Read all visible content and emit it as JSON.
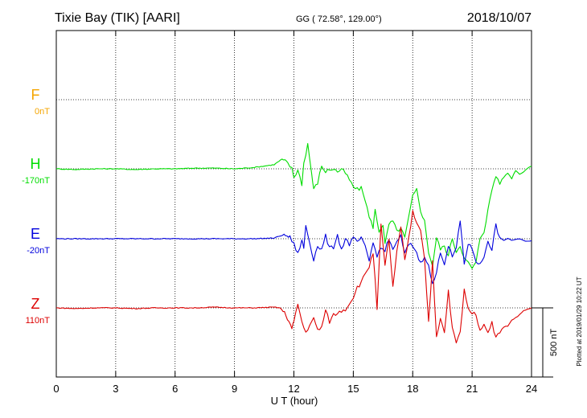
{
  "header": {
    "station": "Tixie Bay (TIK)  [AARI]",
    "coords": "GG ( 72.58°, 129.00°)",
    "date": "2018/10/07"
  },
  "side_note": "Plotted at 2019/01/29 10:22 UT",
  "scale_label": "500 nT",
  "chart_data": {
    "type": "line",
    "xlabel": "U T (hour)",
    "ylabel": "",
    "xlim": [
      0,
      24
    ],
    "x_ticks": [
      0,
      3,
      6,
      9,
      12,
      15,
      18,
      21,
      24
    ],
    "scale_nT": 500,
    "grid": true,
    "series": [
      {
        "name": "F",
        "baseline_label": "0nT",
        "color": "#f5a500",
        "values": []
      },
      {
        "name": "H",
        "baseline_label": "-170nT",
        "color": "#00dd00",
        "x": [
          0,
          1,
          2,
          3,
          4,
          5,
          6,
          7,
          8,
          9,
          10,
          11,
          11.4,
          11.7,
          11.9,
          12.0,
          12.2,
          12.4,
          12.5,
          12.7,
          12.9,
          13.0,
          13.2,
          13.4,
          13.6,
          13.8,
          14.0,
          14.2,
          14.4,
          14.6,
          14.8,
          15.0,
          15.2,
          15.4,
          15.6,
          15.8,
          16.0,
          16.1,
          16.3,
          16.5,
          16.6,
          16.8,
          17.0,
          17.2,
          17.4,
          17.6,
          17.8,
          18.0,
          18.2,
          18.4,
          18.6,
          18.8,
          19.0,
          19.2,
          19.4,
          19.6,
          19.8,
          20.0,
          20.2,
          20.4,
          20.6,
          20.8,
          21.0,
          21.2,
          21.4,
          21.6,
          21.8,
          22.0,
          22.2,
          22.4,
          22.6,
          22.8,
          23.0,
          23.2,
          23.4,
          23.6,
          23.8,
          24.0
        ],
        "values": [
          0,
          -5,
          0,
          0,
          -5,
          0,
          0,
          5,
          5,
          0,
          10,
          30,
          70,
          40,
          0,
          -60,
          -10,
          -110,
          40,
          180,
          -40,
          -150,
          -100,
          20,
          -20,
          -5,
          0,
          -20,
          -5,
          -30,
          -80,
          -130,
          -150,
          -140,
          -220,
          -350,
          -420,
          -300,
          -450,
          -400,
          -550,
          -400,
          -380,
          -450,
          -430,
          -500,
          -350,
          -200,
          -150,
          -300,
          -380,
          -600,
          -700,
          -500,
          -580,
          -560,
          -630,
          -500,
          -600,
          -550,
          -650,
          -680,
          -720,
          -680,
          -500,
          -450,
          -300,
          -150,
          -50,
          -100,
          -60,
          -30,
          -70,
          -10,
          -40,
          -20,
          5,
          20
        ]
      },
      {
        "name": "E",
        "baseline_label": "-20nT",
        "color": "#0000dd",
        "x": [
          0,
          1,
          2,
          3,
          4,
          5,
          6,
          7,
          8,
          9,
          10,
          11,
          11.5,
          11.8,
          12.0,
          12.2,
          12.4,
          12.5,
          12.6,
          12.8,
          13.0,
          13.2,
          13.4,
          13.6,
          13.8,
          14.0,
          14.2,
          14.4,
          14.6,
          14.8,
          15.0,
          15.2,
          15.4,
          15.6,
          15.8,
          16.0,
          16.2,
          16.4,
          16.6,
          16.8,
          17.0,
          17.2,
          17.4,
          17.6,
          17.8,
          18.0,
          18.2,
          18.4,
          18.6,
          18.8,
          19.0,
          19.2,
          19.4,
          19.6,
          19.8,
          20.0,
          20.2,
          20.4,
          20.6,
          20.8,
          21.0,
          21.2,
          21.4,
          21.6,
          21.8,
          22.0,
          22.2,
          22.4,
          22.6,
          22.8,
          23.0,
          23.2,
          23.4,
          23.6,
          23.8,
          24.0
        ],
        "values": [
          0,
          0,
          0,
          0,
          0,
          0,
          0,
          0,
          0,
          0,
          0,
          5,
          30,
          10,
          -40,
          -110,
          -10,
          -70,
          100,
          -30,
          -150,
          -50,
          -80,
          20,
          -70,
          -60,
          30,
          -80,
          0,
          -40,
          0,
          -20,
          0,
          -60,
          -160,
          -30,
          -120,
          -70,
          -80,
          -10,
          -70,
          -30,
          20,
          -110,
          -40,
          -50,
          -100,
          -180,
          -120,
          -200,
          -330,
          -250,
          -90,
          -180,
          -50,
          -130,
          -70,
          130,
          -180,
          -40,
          -70,
          -160,
          -190,
          -130,
          -10,
          -80,
          100,
          0,
          -10,
          0,
          -10,
          -5,
          0,
          -15,
          -20,
          -15
        ]
      },
      {
        "name": "Z",
        "baseline_label": "110nT",
        "color": "#dd0000",
        "x": [
          0,
          1,
          2,
          3,
          4,
          5,
          6,
          7,
          8,
          9,
          10,
          11,
          11.3,
          11.6,
          11.9,
          12.0,
          12.2,
          12.4,
          12.6,
          12.8,
          13.0,
          13.2,
          13.4,
          13.6,
          13.8,
          14.0,
          14.2,
          14.4,
          14.6,
          14.8,
          15.0,
          15.2,
          15.4,
          15.6,
          15.8,
          16.0,
          16.2,
          16.4,
          16.6,
          16.8,
          17.0,
          17.2,
          17.4,
          17.6,
          17.8,
          18.0,
          18.2,
          18.4,
          18.6,
          18.8,
          19.0,
          19.2,
          19.4,
          19.6,
          19.8,
          20.0,
          20.2,
          20.4,
          20.6,
          20.8,
          21.0,
          21.2,
          21.4,
          21.6,
          21.8,
          22.0,
          22.2,
          22.4,
          22.6,
          22.8,
          23.0,
          23.2,
          23.4,
          23.6,
          23.8,
          24.0
        ],
        "values": [
          0,
          -5,
          0,
          0,
          -5,
          0,
          0,
          0,
          5,
          0,
          0,
          5,
          0,
          -50,
          -150,
          -100,
          30,
          -100,
          -180,
          -120,
          -80,
          -160,
          -140,
          -20,
          -100,
          -50,
          -40,
          -20,
          -10,
          30,
          80,
          150,
          180,
          250,
          300,
          400,
          -10,
          600,
          300,
          500,
          150,
          400,
          580,
          350,
          500,
          700,
          620,
          570,
          350,
          -100,
          330,
          -220,
          -80,
          -180,
          120,
          -150,
          -250,
          -180,
          140,
          -10,
          -30,
          -60,
          -150,
          -130,
          -170,
          -100,
          -220,
          -170,
          -140,
          -130,
          -90,
          -70,
          -50,
          -20,
          -10,
          0
        ]
      }
    ]
  }
}
